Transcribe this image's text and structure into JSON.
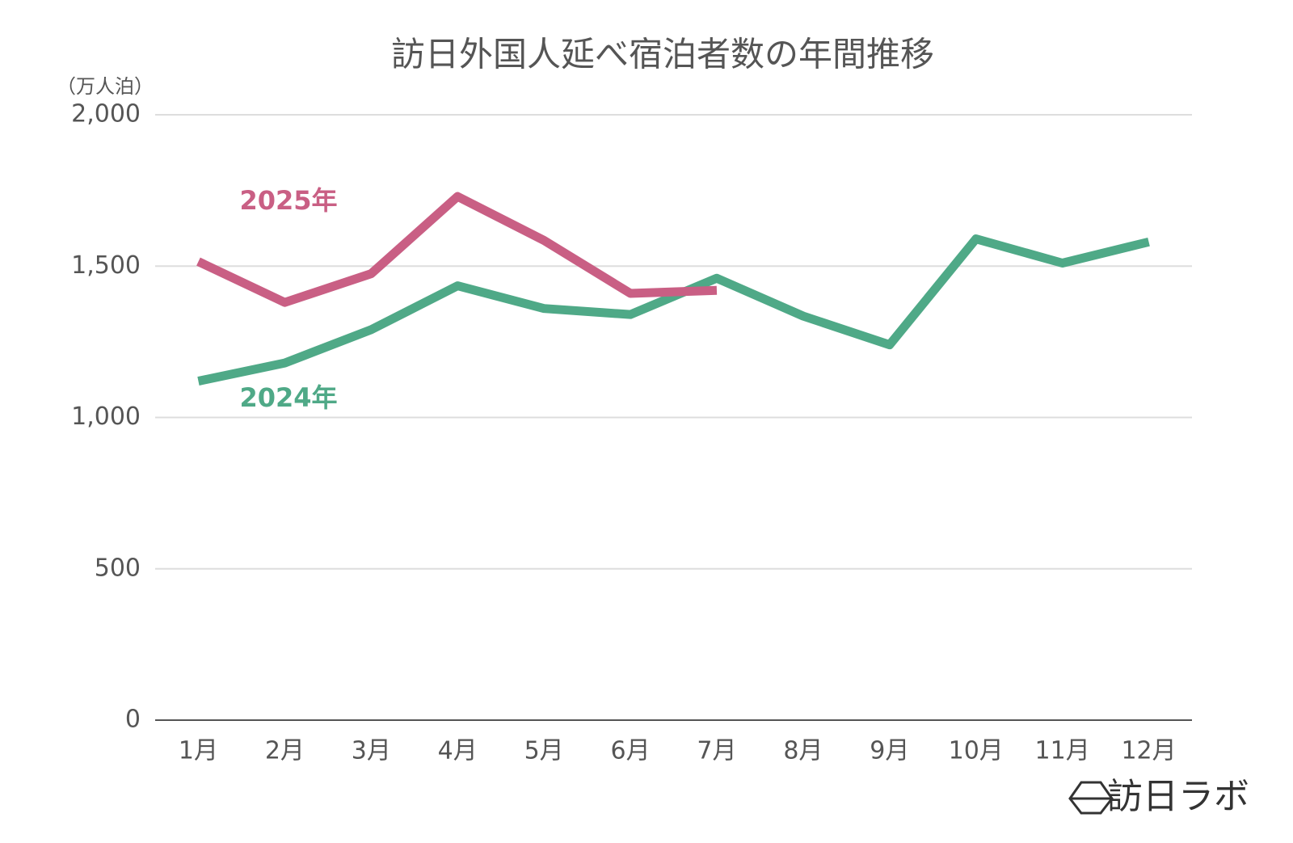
{
  "chart_data": {
    "type": "line",
    "title": "訪日外国人延べ宿泊者数の年間推移",
    "y_label": "（万人泊）",
    "categories": [
      "1月",
      "2月",
      "3月",
      "4月",
      "5月",
      "6月",
      "7月",
      "8月",
      "9月",
      "10月",
      "11月",
      "12月"
    ],
    "series": [
      {
        "name": "2024年",
        "color": "#4fa987",
        "values": [
          1120,
          1180,
          1290,
          1435,
          1360,
          1340,
          1460,
          1335,
          1240,
          1590,
          1510,
          1580
        ]
      },
      {
        "name": "2025年",
        "color": "#c95f84",
        "values": [
          1515,
          1380,
          1475,
          1730,
          1585,
          1410,
          1420,
          null,
          null,
          null,
          null,
          null
        ]
      }
    ],
    "ylim": [
      0,
      2000
    ],
    "yticks": [
      0,
      500,
      {
        "value": 1000,
        "label": "1,000"
      },
      {
        "value": 1500,
        "label": "1,500"
      },
      {
        "value": 2000,
        "label": "2,000"
      }
    ],
    "grid": true,
    "watermark": "訪日ラボ"
  }
}
